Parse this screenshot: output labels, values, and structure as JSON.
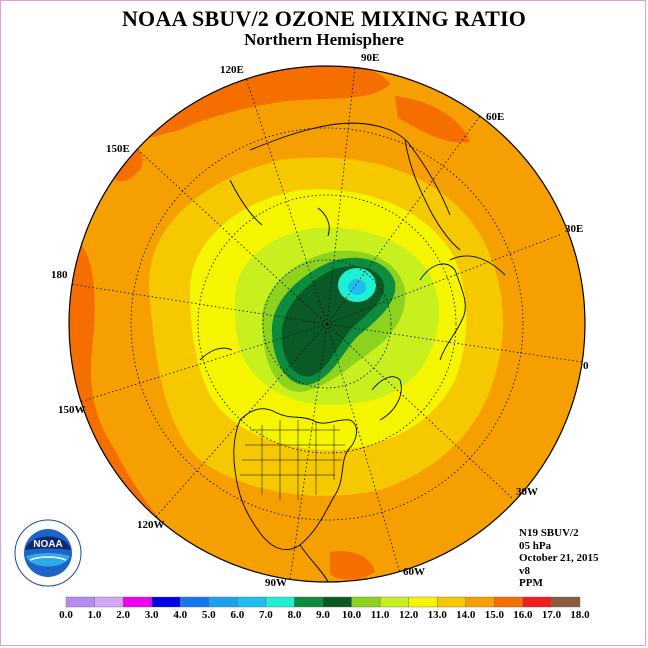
{
  "title": "NOAA SBUV/2 OZONE MIXING RATIO",
  "subtitle": "Northern Hemisphere",
  "longitude_labels": {
    "lon_90e": "90E",
    "lon_120e": "120E",
    "lon_60e": "60E",
    "lon_150e": "150E",
    "lon_30e": "30E",
    "lon_180": "180",
    "lon_0": "0",
    "lon_150w": "150W",
    "lon_30w": "30W",
    "lon_120w": "120W",
    "lon_60w": "60W",
    "lon_90w": "90W"
  },
  "info": {
    "instrument": "N19 SBUV/2",
    "level": "05 hPa",
    "date": "October 21, 2015",
    "version": "v8",
    "units": "PPM"
  },
  "logo": {
    "text": "NOAA",
    "ring_text": "NATIONAL OCEANIC AND ATMOSPHERIC ADMINISTRATION",
    "ring_text_bottom": "U.S. DEPARTMENT OF COMMERCE"
  },
  "colorbar": {
    "ticks": [
      "0.0",
      "1.0",
      "2.0",
      "3.0",
      "4.0",
      "5.0",
      "6.0",
      "7.0",
      "8.0",
      "9.0",
      "10.0",
      "11.0",
      "12.0",
      "13.0",
      "14.0",
      "15.0",
      "16.0",
      "17.0",
      "18.0"
    ],
    "colors": [
      "#b48cf0",
      "#d2a8f5",
      "#f000f0",
      "#0000e6",
      "#1478f0",
      "#1ea0f0",
      "#1ebef0",
      "#1ef0d2",
      "#0c8c3c",
      "#0a5a28",
      "#8cd21e",
      "#c8f01e",
      "#f5f500",
      "#f5c800",
      "#f5a000",
      "#f56e00",
      "#f01e1e",
      "#8c5a3c"
    ]
  }
}
